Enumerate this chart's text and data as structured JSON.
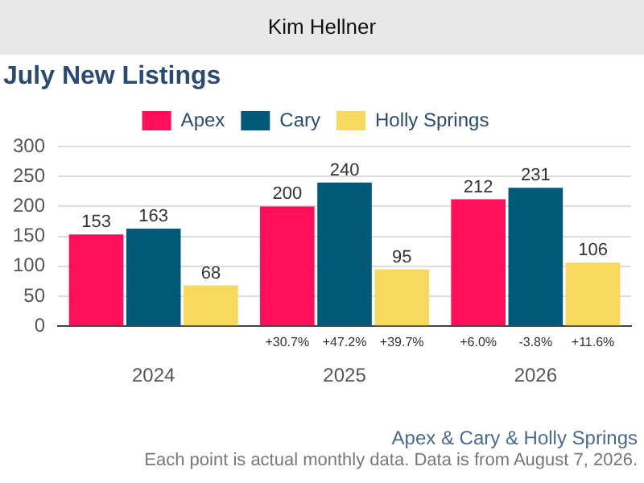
{
  "chart_data": {
    "type": "bar",
    "title": "July New Listings",
    "subtitle": "Kim Hellner",
    "categories": [
      "2024",
      "2025",
      "2026"
    ],
    "series": [
      {
        "name": "Apex",
        "color": "#ff0f5a",
        "values": [
          153,
          200,
          212
        ]
      },
      {
        "name": "Cary",
        "color": "#005a78",
        "values": [
          163,
          240,
          231
        ]
      },
      {
        "name": "Holly Springs",
        "color": "#f7d95e",
        "values": [
          68,
          95,
          106
        ]
      }
    ],
    "ylim": [
      0,
      300
    ],
    "yticks": [
      0,
      50,
      100,
      150,
      200,
      250,
      300
    ],
    "grid": "y",
    "legend": "top",
    "data_labels": true,
    "annotations": [
      "+30.7%",
      "+47.2%",
      "+39.7%",
      "+6.0%",
      "-3.8%",
      "+11.6%",
      "Apex & Cary & Holly Springs",
      "Each point is actual monthly data. Data is from August 7, 2026."
    ]
  }
}
